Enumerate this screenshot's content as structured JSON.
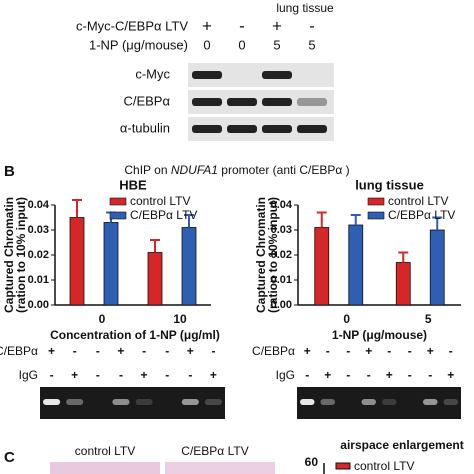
{
  "panel_a": {
    "header": "lung tissue",
    "row_labels": [
      "c-Myc-C/EBPα LTV",
      "1-NP (μg/mouse)"
    ],
    "lanes": [
      [
        "+",
        "0"
      ],
      [
        "-",
        "0"
      ],
      [
        "+",
        "5"
      ],
      [
        "-",
        "5"
      ]
    ],
    "blots": [
      "c-Myc",
      "C/EBPα",
      "α-tubulin"
    ]
  },
  "panel_b": {
    "label": "B",
    "title": [
      "ChIP on ",
      "NDUFA1",
      " promoter (anti C/EBPα )"
    ]
  },
  "chart_data": [
    {
      "type": "bar",
      "title": "HBE",
      "ylabel": [
        "Captured Chromatin",
        "(ration to 10% input)"
      ],
      "xlabel": "Concentration of 1-NP (μg/ml)",
      "categories": [
        "0",
        "10"
      ],
      "series": [
        {
          "name": "control LTV",
          "color": "#d62728",
          "values": [
            0.035,
            0.021
          ],
          "errors": [
            0.007,
            0.005
          ]
        },
        {
          "name": "C/EBPα LTV",
          "color": "#2f5fb3",
          "values": [
            0.033,
            0.031
          ],
          "errors": [
            0.004,
            0.005
          ]
        }
      ],
      "ylim": [
        0,
        0.04
      ],
      "yticks": [
        {
          "value": 0,
          "label": "0.00"
        },
        0.01,
        0.02,
        0.03,
        {
          "value": 0.04,
          "label": "0.04"
        }
      ],
      "gel": {
        "rows": [
          {
            "label": "C/EBPα",
            "signs": [
              "+",
              "-",
              "-",
              "+",
              "-",
              "-",
              "+",
              "-"
            ]
          },
          {
            "label": "IgG",
            "signs": [
              "-",
              "+",
              "-",
              "-",
              "+",
              "-",
              "-",
              "+"
            ]
          }
        ]
      }
    },
    {
      "type": "bar",
      "title": "lung tissue",
      "ylabel": [
        "Captured Chromatin",
        "(ration to 10% input)"
      ],
      "xlabel": "1-NP (μg/mouse)",
      "categories": [
        "0",
        "5"
      ],
      "series": [
        {
          "name": "control LTV",
          "color": "#d62728",
          "values": [
            0.031,
            0.017
          ],
          "errors": [
            0.006,
            0.004
          ]
        },
        {
          "name": "C/EBPα LTV",
          "color": "#2f5fb3",
          "values": [
            0.032,
            0.03
          ],
          "errors": [
            0.004,
            0.005
          ]
        }
      ],
      "ylim": [
        0,
        0.04
      ],
      "yticks": [
        {
          "value": 0,
          "label": "0.00"
        },
        0.01,
        0.02,
        0.03,
        {
          "value": 0.04,
          "label": "0.04"
        }
      ],
      "gel": {
        "rows": [
          {
            "label": "C/EBPα",
            "signs": [
              "+",
              "-",
              "-",
              "+",
              "-",
              "-",
              "+",
              "-"
            ]
          },
          {
            "label": "IgG",
            "signs": [
              "-",
              "+",
              "-",
              "-",
              "+",
              "-",
              "-",
              "+"
            ]
          }
        ]
      }
    }
  ],
  "panel_c": {
    "label": "C",
    "images": [
      "control LTV",
      "C/EBPα  LTV"
    ],
    "chart_title": "airspace enlargement",
    "ytick": "60",
    "legend": "control LTV"
  }
}
